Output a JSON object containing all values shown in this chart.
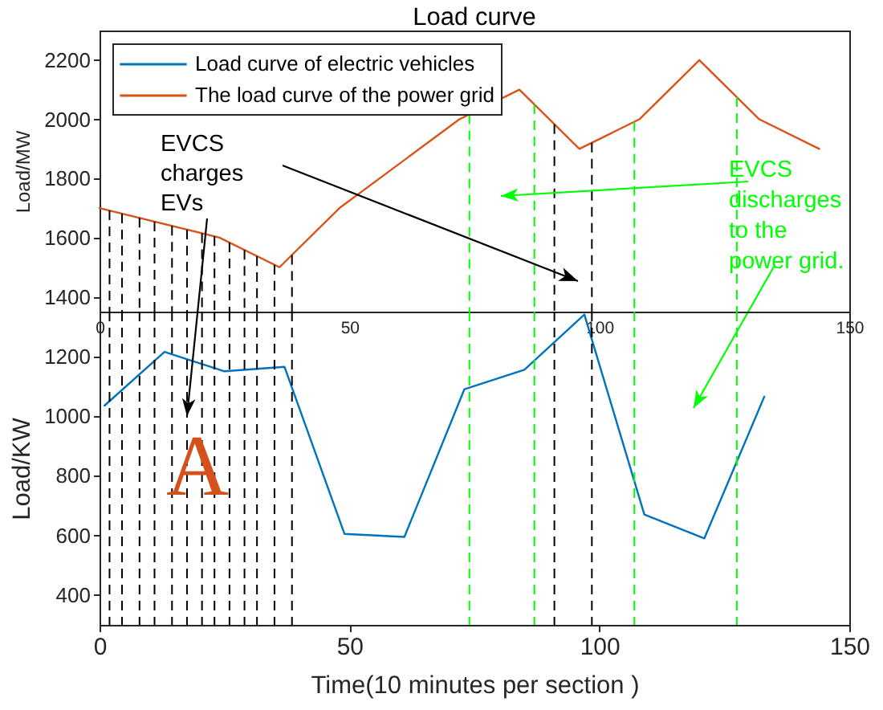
{
  "chart_data": [
    {
      "type": "line",
      "title": "Load curve",
      "ylabel": "Load/MW",
      "xlim": [
        0,
        150
      ],
      "xticks": [
        0,
        50,
        100,
        150
      ],
      "ylim": [
        1350,
        2300
      ],
      "yticks": [
        1400,
        1600,
        1800,
        2000,
        2200
      ],
      "series": [
        {
          "name": "The load curve of the power grid",
          "color": "#d95319",
          "x": [
            0,
            24,
            36,
            48,
            72,
            84,
            96,
            108,
            120,
            132,
            144
          ],
          "values": [
            1700,
            1600,
            1500,
            1700,
            2000,
            2100,
            1900,
            2000,
            2200,
            2000,
            1900
          ]
        }
      ],
      "ref_lines": [
        {
          "axis": "x",
          "value": 2,
          "color": "#000000",
          "line_style": "dashed"
        },
        {
          "axis": "x",
          "value": 4.5,
          "color": "#000000",
          "line_style": "dashed"
        },
        {
          "axis": "x",
          "value": 8,
          "color": "#000000",
          "line_style": "dashed"
        },
        {
          "axis": "x",
          "value": 11,
          "color": "#000000",
          "line_style": "dashed"
        },
        {
          "axis": "x",
          "value": 14.5,
          "color": "#000000",
          "line_style": "dashed"
        },
        {
          "axis": "x",
          "value": 17.5,
          "color": "#000000",
          "line_style": "dashed"
        },
        {
          "axis": "x",
          "value": 20.5,
          "color": "#000000",
          "line_style": "dashed"
        },
        {
          "axis": "x",
          "value": 23,
          "color": "#000000",
          "line_style": "dashed"
        },
        {
          "axis": "x",
          "value": 26,
          "color": "#000000",
          "line_style": "dashed"
        },
        {
          "axis": "x",
          "value": 29,
          "color": "#000000",
          "line_style": "dashed"
        },
        {
          "axis": "x",
          "value": 31.5,
          "color": "#000000",
          "line_style": "dashed"
        },
        {
          "axis": "x",
          "value": 35,
          "color": "#000000",
          "line_style": "dashed"
        },
        {
          "axis": "x",
          "value": 38.5,
          "color": "#000000",
          "line_style": "dashed"
        },
        {
          "axis": "x",
          "value": 74,
          "color": "#00ff00",
          "line_style": "dashed"
        },
        {
          "axis": "x",
          "value": 87,
          "color": "#00ff00",
          "line_style": "dashed"
        },
        {
          "axis": "x",
          "value": 91,
          "color": "#000000",
          "line_style": "dashed"
        },
        {
          "axis": "x",
          "value": 98.5,
          "color": "#000000",
          "line_style": "dashed"
        },
        {
          "axis": "x",
          "value": 107,
          "color": "#00ff00",
          "line_style": "dashed"
        },
        {
          "axis": "x",
          "value": 127.5,
          "color": "#00ff00",
          "line_style": "dashed"
        }
      ],
      "annotations": [
        "EVCS\ndischarges\nto the\npower grid."
      ],
      "legend": "top left",
      "grid": false
    },
    {
      "type": "line",
      "xlabel": "Time(10 minutes per section  )",
      "ylabel": "Load/KW",
      "xlim": [
        0,
        150
      ],
      "xticks": [
        0,
        50,
        100,
        150
      ],
      "ylim": [
        300,
        1350
      ],
      "yticks": [
        400,
        600,
        800,
        1000,
        1200
      ],
      "series": [
        {
          "name": "Load curve of electric vehicles",
          "color": "#0072bd",
          "x": [
            1,
            13,
            25,
            37,
            49,
            61,
            73,
            85,
            97,
            109,
            121,
            133
          ],
          "values": [
            1035,
            1215,
            1150,
            1165,
            605,
            595,
            1090,
            1155,
            1340,
            670,
            590,
            1065
          ]
        }
      ],
      "ref_lines": [
        {
          "axis": "x",
          "value": 2,
          "color": "#000000",
          "line_style": "dashed"
        },
        {
          "axis": "x",
          "value": 4.5,
          "color": "#000000",
          "line_style": "dashed"
        },
        {
          "axis": "x",
          "value": 8,
          "color": "#000000",
          "line_style": "dashed"
        },
        {
          "axis": "x",
          "value": 11,
          "color": "#000000",
          "line_style": "dashed"
        },
        {
          "axis": "x",
          "value": 14.5,
          "color": "#000000",
          "line_style": "dashed"
        },
        {
          "axis": "x",
          "value": 17.5,
          "color": "#000000",
          "line_style": "dashed"
        },
        {
          "axis": "x",
          "value": 20.5,
          "color": "#000000",
          "line_style": "dashed"
        },
        {
          "axis": "x",
          "value": 23,
          "color": "#000000",
          "line_style": "dashed"
        },
        {
          "axis": "x",
          "value": 26,
          "color": "#000000",
          "line_style": "dashed"
        },
        {
          "axis": "x",
          "value": 29,
          "color": "#000000",
          "line_style": "dashed"
        },
        {
          "axis": "x",
          "value": 31.5,
          "color": "#000000",
          "line_style": "dashed"
        },
        {
          "axis": "x",
          "value": 35,
          "color": "#000000",
          "line_style": "dashed"
        },
        {
          "axis": "x",
          "value": 38.5,
          "color": "#000000",
          "line_style": "dashed"
        },
        {
          "axis": "x",
          "value": 74,
          "color": "#00ff00",
          "line_style": "dashed"
        },
        {
          "axis": "x",
          "value": 87,
          "color": "#00ff00",
          "line_style": "dashed"
        },
        {
          "axis": "x",
          "value": 91,
          "color": "#000000",
          "line_style": "dashed"
        },
        {
          "axis": "x",
          "value": 98.5,
          "color": "#000000",
          "line_style": "dashed"
        },
        {
          "axis": "x",
          "value": 107,
          "color": "#00ff00",
          "line_style": "dashed"
        },
        {
          "axis": "x",
          "value": 127.5,
          "color": "#00ff00",
          "line_style": "dashed"
        }
      ],
      "annotations": [
        {
          "text": "EVCS\ncharges\nEVs",
          "x": 17.5,
          "y": 1000
        },
        "A"
      ],
      "legend": "top left",
      "grid": false
    }
  ]
}
